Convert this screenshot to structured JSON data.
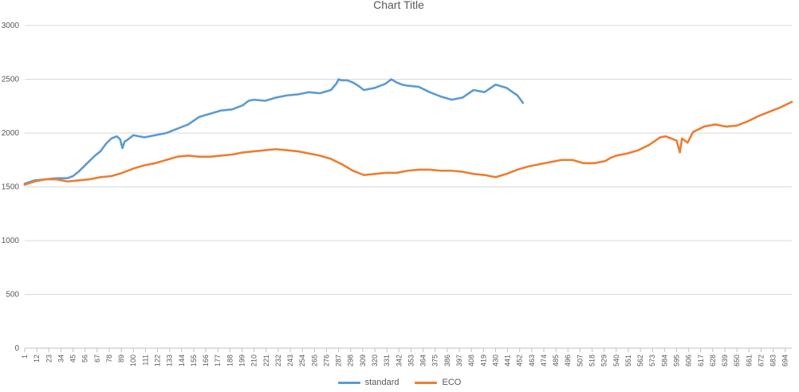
{
  "chart_data": {
    "type": "line",
    "title": "Chart Title",
    "xlabel": "",
    "ylabel": "",
    "xlim": [
      1,
      700
    ],
    "ylim": [
      0,
      3000
    ],
    "yticks": [
      0,
      500,
      1000,
      1500,
      2000,
      2500,
      3000
    ],
    "ytick_labels": [
      "0",
      "500",
      "1000",
      "1500",
      "2000",
      "2500",
      "3000"
    ],
    "xtick_labels": [
      "1",
      "12",
      "23",
      "34",
      "45",
      "56",
      "67",
      "78",
      "89",
      "100",
      "111",
      "122",
      "133",
      "144",
      "155",
      "166",
      "177",
      "188",
      "199",
      "210",
      "221",
      "232",
      "243",
      "254",
      "265",
      "276",
      "287",
      "298",
      "309",
      "320",
      "331",
      "342",
      "353",
      "364",
      "375",
      "386",
      "397",
      "408",
      "419",
      "430",
      "441",
      "452",
      "463",
      "474",
      "485",
      "496",
      "507",
      "518",
      "529",
      "540",
      "551",
      "562",
      "573",
      "584",
      "595",
      "606",
      "617",
      "628",
      "639",
      "650",
      "661",
      "672",
      "683",
      "694"
    ],
    "grid": true,
    "legend_position": "bottom",
    "colors": {
      "standard": "#5b9bd5",
      "ECO": "#ed7d31",
      "grid": "#d9d9d9",
      "text": "#595959"
    },
    "series": [
      {
        "name": "standard",
        "x": [
          1,
          10,
          20,
          30,
          40,
          45,
          50,
          55,
          60,
          65,
          70,
          75,
          80,
          85,
          88,
          90,
          92,
          95,
          100,
          110,
          120,
          130,
          140,
          150,
          160,
          170,
          180,
          190,
          200,
          205,
          210,
          220,
          230,
          240,
          250,
          260,
          270,
          280,
          285,
          287,
          290,
          295,
          300,
          305,
          310,
          320,
          330,
          335,
          340,
          345,
          350,
          360,
          370,
          380,
          390,
          400,
          410,
          420,
          430,
          440,
          450,
          455
        ],
        "values": [
          1530,
          1560,
          1570,
          1580,
          1580,
          1600,
          1640,
          1690,
          1740,
          1790,
          1830,
          1900,
          1950,
          1970,
          1940,
          1860,
          1920,
          1940,
          1980,
          1960,
          1980,
          2000,
          2040,
          2080,
          2150,
          2180,
          2210,
          2220,
          2260,
          2300,
          2310,
          2300,
          2330,
          2350,
          2360,
          2380,
          2370,
          2400,
          2460,
          2500,
          2490,
          2490,
          2470,
          2440,
          2400,
          2420,
          2460,
          2500,
          2470,
          2450,
          2440,
          2430,
          2380,
          2340,
          2310,
          2330,
          2400,
          2380,
          2450,
          2420,
          2350,
          2280
        ]
      },
      {
        "name": "ECO",
        "x": [
          1,
          10,
          20,
          30,
          40,
          50,
          60,
          70,
          80,
          90,
          100,
          110,
          120,
          130,
          140,
          150,
          160,
          170,
          180,
          190,
          200,
          210,
          220,
          230,
          240,
          250,
          260,
          270,
          280,
          290,
          300,
          305,
          310,
          320,
          330,
          340,
          350,
          360,
          370,
          380,
          390,
          400,
          410,
          420,
          430,
          440,
          450,
          460,
          470,
          480,
          490,
          500,
          510,
          520,
          530,
          535,
          540,
          550,
          560,
          570,
          580,
          585,
          590,
          595,
          598,
          600,
          605,
          610,
          620,
          630,
          640,
          650,
          660,
          670,
          680,
          690,
          700
        ],
        "values": [
          1520,
          1550,
          1570,
          1570,
          1550,
          1560,
          1570,
          1590,
          1600,
          1630,
          1670,
          1700,
          1720,
          1750,
          1780,
          1790,
          1780,
          1780,
          1790,
          1800,
          1820,
          1830,
          1840,
          1850,
          1840,
          1830,
          1810,
          1790,
          1760,
          1710,
          1650,
          1630,
          1610,
          1620,
          1630,
          1630,
          1650,
          1660,
          1660,
          1650,
          1650,
          1640,
          1620,
          1610,
          1590,
          1620,
          1660,
          1690,
          1710,
          1730,
          1750,
          1750,
          1720,
          1720,
          1740,
          1770,
          1790,
          1810,
          1840,
          1890,
          1960,
          1970,
          1950,
          1930,
          1820,
          1950,
          1910,
          2010,
          2060,
          2080,
          2060,
          2070,
          2110,
          2160,
          2200,
          2240,
          2290
        ]
      }
    ]
  }
}
